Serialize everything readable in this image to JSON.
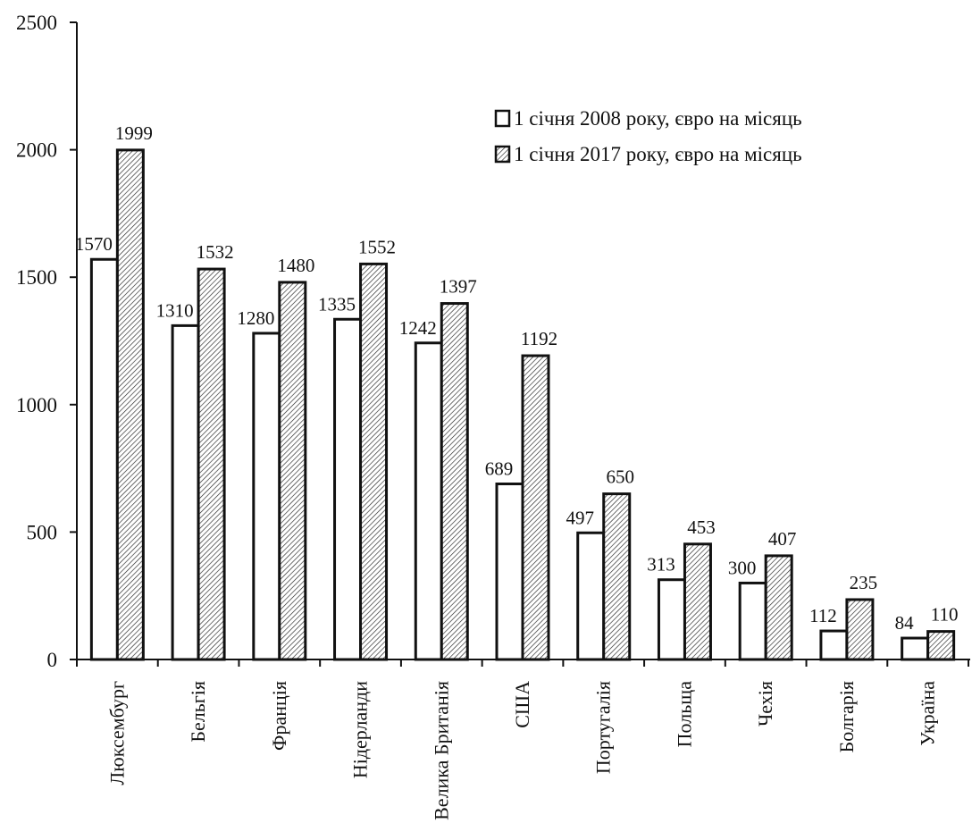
{
  "chart_data": {
    "type": "bar",
    "categories": [
      "Люксембург",
      "Бельгія",
      "Франція",
      "Нідерланди",
      "Велика Британія",
      "США",
      "Португалія",
      "Польща",
      "Чехія",
      "Болгарія",
      "Україна"
    ],
    "series": [
      {
        "name": "1 січня 2008 року, євро на місяць",
        "values": [
          1570,
          1310,
          1280,
          1335,
          1242,
          689,
          497,
          313,
          300,
          112,
          84
        ],
        "fill": "white"
      },
      {
        "name": "1 січня 2017 року, євро на місяць",
        "values": [
          1999,
          1532,
          1480,
          1552,
          1397,
          1192,
          650,
          453,
          407,
          235,
          110
        ],
        "fill": "hatched"
      }
    ],
    "y_ticks": [
      "0",
      "500",
      "1000",
      "1500",
      "2000",
      "2500"
    ],
    "ylim": [
      0,
      2500
    ],
    "title": "",
    "xlabel": "",
    "ylabel": "",
    "legend_position": "top-right",
    "grid": false
  }
}
